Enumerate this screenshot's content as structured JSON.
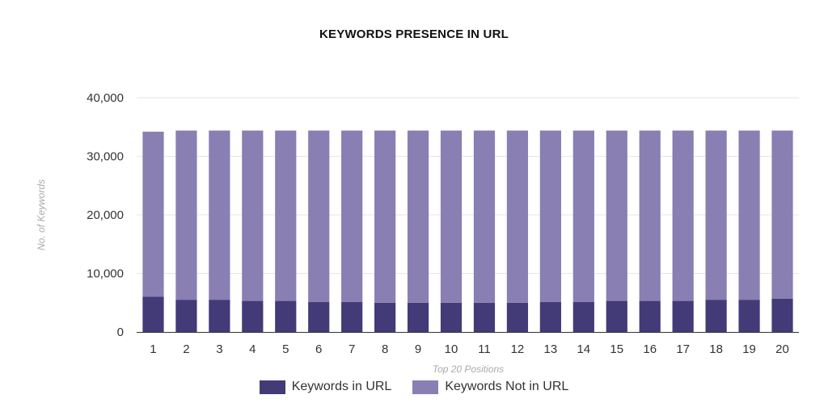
{
  "colors": {
    "in_url": "#433a78",
    "not_in_url": "#8a7fb3",
    "grid": "#e6e6e6",
    "axis_text": "#333333",
    "axis_title": "#aaaaaa"
  },
  "chart_data": {
    "type": "bar",
    "stacked": true,
    "title": "KEYWORDS PRESENCE IN URL",
    "xlabel": "Top 20 Positions",
    "ylabel": "No. of Keywords",
    "categories": [
      "1",
      "2",
      "3",
      "4",
      "5",
      "6",
      "7",
      "8",
      "9",
      "10",
      "11",
      "12",
      "13",
      "14",
      "15",
      "16",
      "17",
      "18",
      "19",
      "20"
    ],
    "ylim": [
      0,
      40000
    ],
    "yticks": [
      0,
      10000,
      20000,
      30000,
      40000
    ],
    "ytick_labels": [
      "0",
      "10,000",
      "20,000",
      "30,000",
      "40,000"
    ],
    "grid": true,
    "legend_position": "bottom-center",
    "series": [
      {
        "name": "Keywords in URL",
        "values": [
          6000,
          5500,
          5500,
          5300,
          5300,
          5100,
          5100,
          5000,
          5000,
          5000,
          5000,
          5000,
          5100,
          5100,
          5300,
          5300,
          5300,
          5500,
          5500,
          5700
        ]
      },
      {
        "name": "Keywords Not in URL",
        "values": [
          28200,
          28900,
          28900,
          29100,
          29100,
          29300,
          29300,
          29400,
          29400,
          29400,
          29400,
          29400,
          29300,
          29300,
          29100,
          29100,
          29100,
          28900,
          28900,
          28700
        ]
      }
    ]
  }
}
